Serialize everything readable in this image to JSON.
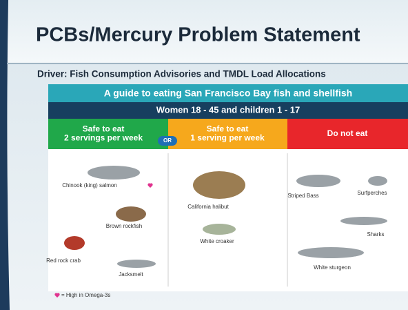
{
  "header": {
    "title": "PCBs/Mercury Problem Statement",
    "subtitle": "Driver: Fish Consumption Advisories and TMDL Load Allocations"
  },
  "guide": {
    "title": "A guide to eating San Francisco Bay fish and shellfish",
    "audience": "Women 18 - 45 and children 1 - 17",
    "columns": [
      {
        "lines": [
          "Safe to eat",
          "2 servings per week"
        ],
        "fish": [
          "Chinook (king) salmon",
          "Brown rockfish",
          "Red rock crab",
          "Jacksmelt"
        ]
      },
      {
        "lines": [
          "Safe to eat",
          "1 serving per week"
        ],
        "fish": [
          "California halibut",
          "White croaker"
        ]
      },
      {
        "lines": [
          "Do not eat"
        ],
        "fish": [
          "Striped Bass",
          "Surfperches",
          "Sharks",
          "White sturgeon"
        ]
      }
    ],
    "or_label": "OR",
    "legend": "= High in Omega-3s"
  }
}
